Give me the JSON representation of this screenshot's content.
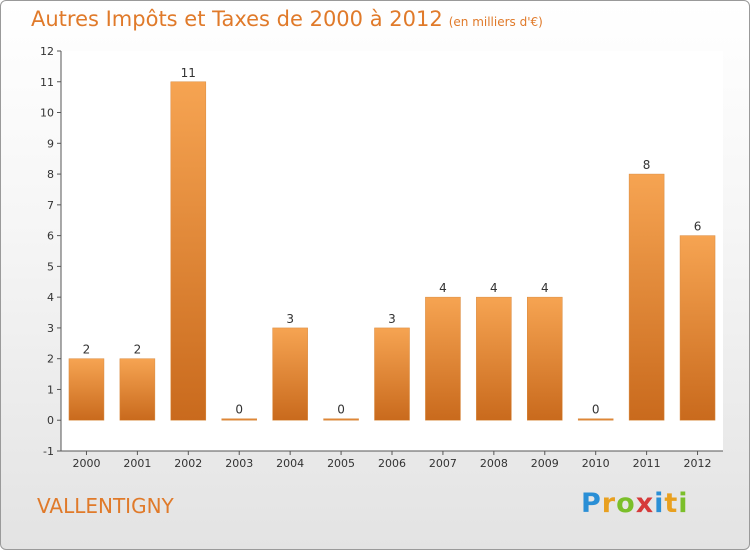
{
  "title": "Autres Impôts et Taxes de 2000 à 2012",
  "subtitle": "(en milliers d'€)",
  "commune": "VALLENTIGNY",
  "logo": {
    "letters": [
      "P",
      "r",
      "o",
      "x",
      "i",
      "t",
      "i"
    ],
    "colors": [
      "#2a8fd6",
      "#e8a020",
      "#7bbf2a",
      "#d63a3a",
      "#2a8fd6",
      "#e8a020",
      "#7bbf2a"
    ]
  },
  "colors": {
    "bar_top": "#f6a452",
    "bar_bottom": "#c96a1d",
    "title": "#e07a2a"
  },
  "chart_data": {
    "type": "bar",
    "categories": [
      "2000",
      "2001",
      "2002",
      "2003",
      "2004",
      "2005",
      "2006",
      "2007",
      "2008",
      "2009",
      "2010",
      "2011",
      "2012"
    ],
    "values": [
      2,
      2,
      11,
      0,
      3,
      0,
      3,
      4,
      4,
      4,
      0,
      8,
      6
    ],
    "data_labels": [
      "2",
      "2",
      "11",
      "0",
      "3",
      "0",
      "3",
      "4",
      "4",
      "4",
      "0",
      "8",
      "6"
    ],
    "ylim": [
      -1,
      12
    ],
    "yticks": [
      -1,
      0,
      1,
      2,
      3,
      4,
      5,
      6,
      7,
      8,
      9,
      10,
      11,
      12
    ],
    "grid": false,
    "legend": false
  }
}
